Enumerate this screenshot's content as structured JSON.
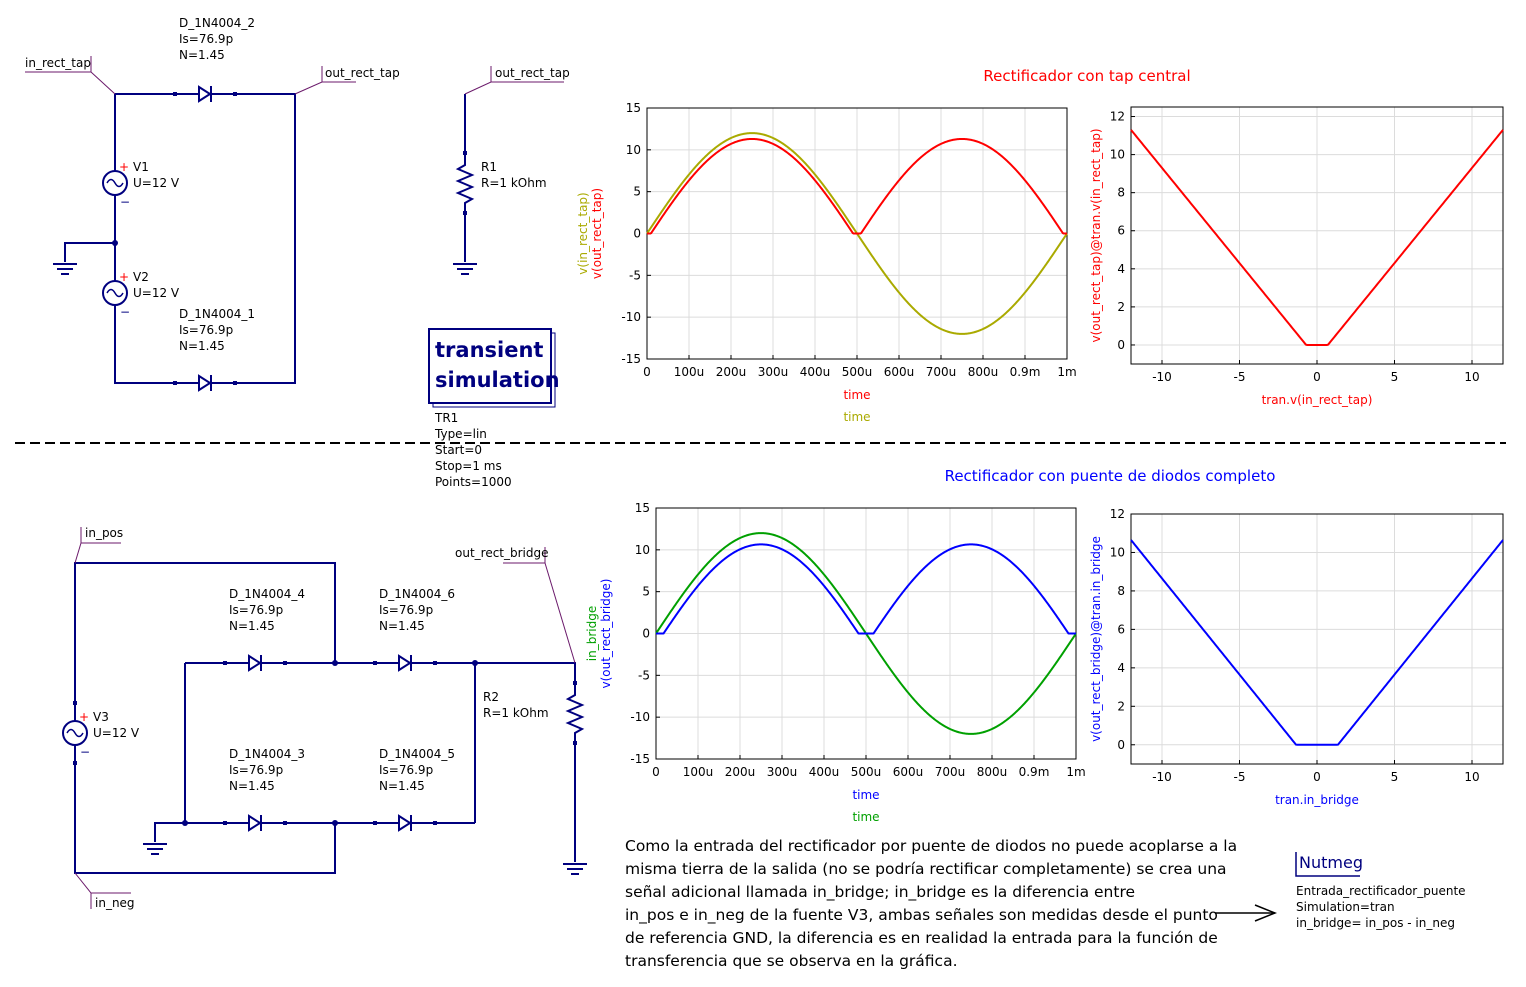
{
  "labels": {
    "in_rect_tap": "in_rect_tap",
    "out_rect_tap": "out_rect_tap",
    "in_pos": "in_pos",
    "in_neg": "in_neg",
    "out_rect_bridge": "out_rect_bridge"
  },
  "components": {
    "d2": {
      "name": "D_1N4004_2",
      "is": "Is=76.9p",
      "n": "N=1.45"
    },
    "d1": {
      "name": "D_1N4004_1",
      "is": "Is=76.9p",
      "n": "N=1.45"
    },
    "d3": {
      "name": "D_1N4004_3",
      "is": "Is=76.9p",
      "n": "N=1.45"
    },
    "d4": {
      "name": "D_1N4004_4",
      "is": "Is=76.9p",
      "n": "N=1.45"
    },
    "d5": {
      "name": "D_1N4004_5",
      "is": "Is=76.9p",
      "n": "N=1.45"
    },
    "d6": {
      "name": "D_1N4004_6",
      "is": "Is=76.9p",
      "n": "N=1.45"
    },
    "v1": {
      "name": "V1",
      "u": "U=12 V"
    },
    "v2": {
      "name": "V2",
      "u": "U=12 V"
    },
    "v3": {
      "name": "V3",
      "u": "U=12 V"
    },
    "r1": {
      "name": "R1",
      "r": "R=1 kOhm"
    },
    "r2": {
      "name": "R2",
      "r": "R=1 kOhm"
    }
  },
  "simulation": {
    "box_line1": "transient",
    "box_line2": "simulation",
    "name": "TR1",
    "type": "Type=lin",
    "start": "Start=0",
    "stop": "Stop=1 ms",
    "points": "Points=1000"
  },
  "nutmeg": {
    "title": "Nutmeg",
    "line1": "Entrada_rectificador_puente",
    "line2": "Simulation=tran",
    "line3": "in_bridge= in_pos - in_neg"
  },
  "description": [
    "Como la entrada del rectificador por puente de diodos no puede acoplarse a la",
    "misma tierra de la salida (no se podría rectificar completamente) se crea una",
    "señal adicional llamada in_bridge; in_bridge es la diferencia entre",
    "in_pos e in_neg de la fuente V3, ambas señales son medidas desde el punto",
    "de referencia GND, la diferencia es en realidad la entrada para la función de",
    "transferencia que se observa en la gráfica."
  ],
  "chart_data": [
    {
      "type": "line",
      "title": "Rectificador con tap central",
      "title_color": "#ff0000",
      "xlabels": [
        {
          "text": "time",
          "color": "#ff0000"
        },
        {
          "text": "time",
          "color": "#aaaa00"
        }
      ],
      "ylabels": [
        {
          "text": "v(in_rect_tap)",
          "color": "#aaaa00"
        },
        {
          "text": "v(out_rect_tap)",
          "color": "#ff0000"
        }
      ],
      "xlim": [
        0,
        0.001
      ],
      "ylim": [
        -15,
        15
      ],
      "xticks": [
        0,
        0.0001,
        0.0002,
        0.0003,
        0.0004,
        0.0005,
        0.0006,
        0.0007,
        0.0008,
        0.0009,
        0.001
      ],
      "xticklabels": [
        "0",
        "100u",
        "200u",
        "300u",
        "400u",
        "500u",
        "600u",
        "700u",
        "800u",
        "0.9m",
        "1m"
      ],
      "yticks": [
        -15,
        -10,
        -5,
        0,
        5,
        10,
        15
      ],
      "yticklabels": [
        "-15",
        "-10",
        "-5",
        "0",
        "5",
        "10",
        "15"
      ],
      "grid": true,
      "series": [
        {
          "name": "v(in_rect_tap)",
          "color": "#aaaa00",
          "kind": "sine",
          "amplitude": 12,
          "frequency": 1000
        },
        {
          "name": "v(out_rect_tap)",
          "color": "#ff0000",
          "kind": "fullwave",
          "amplitude": 12,
          "frequency": 1000,
          "drop": 0.7
        }
      ]
    },
    {
      "type": "line",
      "title": "",
      "xlabels": [
        {
          "text": "tran.v(in_rect_tap)",
          "color": "#ff0000"
        }
      ],
      "ylabels": [
        {
          "text": "v(out_rect_tap)@tran.v(in_rect_tap)",
          "color": "#ff0000"
        }
      ],
      "xlim": [
        -12,
        12
      ],
      "ylim": [
        -1,
        12.5
      ],
      "xticks": [
        -10,
        -5,
        0,
        5,
        10
      ],
      "xticklabels": [
        "-10",
        "-5",
        "0",
        "5",
        "10"
      ],
      "yticks": [
        0,
        2,
        4,
        6,
        8,
        10,
        12
      ],
      "yticklabels": [
        "0",
        "2",
        "4",
        "6",
        "8",
        "10",
        "12"
      ],
      "grid": true,
      "series": [
        {
          "name": "v(out_rect_tap)@tran.v(in_rect_tap)",
          "color": "#ff0000",
          "kind": "transfer",
          "drop": 0.7
        }
      ]
    },
    {
      "type": "line",
      "title": "Rectificador con puente de diodos completo",
      "title_color": "#0000ff",
      "xlabels": [
        {
          "text": "time",
          "color": "#0000ff"
        },
        {
          "text": "time",
          "color": "#00a000"
        }
      ],
      "ylabels": [
        {
          "text": "in_bridge",
          "color": "#00a000"
        },
        {
          "text": "v(out_rect_bridge)",
          "color": "#0000ff"
        }
      ],
      "xlim": [
        0,
        0.001
      ],
      "ylim": [
        -15,
        15
      ],
      "xticks": [
        0,
        0.0001,
        0.0002,
        0.0003,
        0.0004,
        0.0005,
        0.0006,
        0.0007,
        0.0008,
        0.0009,
        0.001
      ],
      "xticklabels": [
        "0",
        "100u",
        "200u",
        "300u",
        "400u",
        "500u",
        "600u",
        "700u",
        "800u",
        "0.9m",
        "1m"
      ],
      "yticks": [
        -15,
        -10,
        -5,
        0,
        5,
        10,
        15
      ],
      "yticklabels": [
        "-15",
        "-10",
        "-5",
        "0",
        "5",
        "10",
        "15"
      ],
      "grid": true,
      "series": [
        {
          "name": "in_bridge",
          "color": "#00a000",
          "kind": "sine",
          "amplitude": 12,
          "frequency": 1000
        },
        {
          "name": "v(out_rect_bridge)",
          "color": "#0000ff",
          "kind": "fullwave",
          "amplitude": 12,
          "frequency": 1000,
          "drop": 1.35
        }
      ]
    },
    {
      "type": "line",
      "title": "",
      "xlabels": [
        {
          "text": "tran.in_bridge",
          "color": "#0000ff"
        }
      ],
      "ylabels": [
        {
          "text": "v(out_rect_bridge)@tran.in_bridge",
          "color": "#0000ff"
        }
      ],
      "xlim": [
        -12,
        12
      ],
      "ylim": [
        -1,
        12
      ],
      "xticks": [
        -10,
        -5,
        0,
        5,
        10
      ],
      "xticklabels": [
        "-10",
        "-5",
        "0",
        "5",
        "10"
      ],
      "yticks": [
        0,
        2,
        4,
        6,
        8,
        10,
        12
      ],
      "yticklabels": [
        "0",
        "2",
        "4",
        "6",
        "8",
        "10",
        "12"
      ],
      "grid": true,
      "series": [
        {
          "name": "v(out_rect_bridge)@tran.in_bridge",
          "color": "#0000ff",
          "kind": "transfer",
          "drop": 1.35
        }
      ]
    }
  ]
}
